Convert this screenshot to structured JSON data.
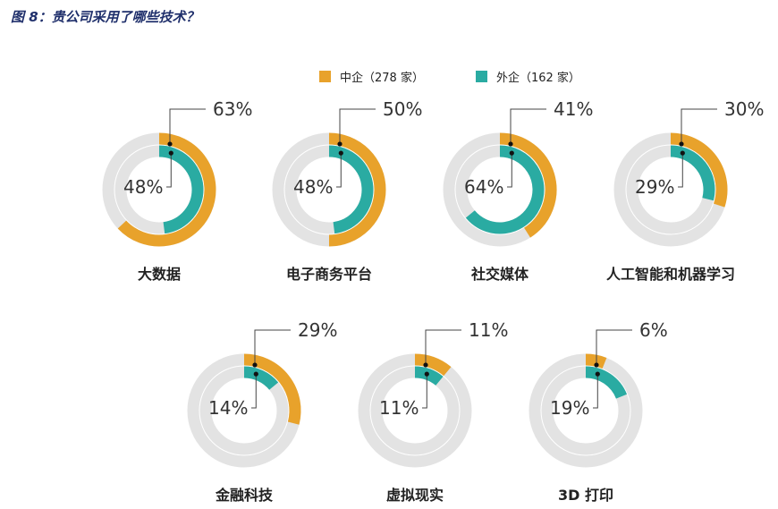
{
  "title": "图 8：贵公司采用了哪些技术？",
  "chart_data": {
    "type": "donut",
    "title": "图 8：贵公司采用了哪些技术？",
    "series": [
      {
        "name": "中企（278 家）",
        "color": "#e8a22b"
      },
      {
        "name": "外企（162 家）",
        "color": "#2aaba2"
      }
    ],
    "categories": [
      "大数据",
      "电子商务平台",
      "社交媒体",
      "人工智能和机器学习",
      "金融科技",
      "虚拟现实",
      "3D 打印"
    ],
    "items": [
      {
        "category": "大数据",
        "chinese": 63,
        "foreign": 48,
        "chinese_label": "63%",
        "foreign_label": "48%"
      },
      {
        "category": "电子商务平台",
        "chinese": 50,
        "foreign": 48,
        "chinese_label": "50%",
        "foreign_label": "48%"
      },
      {
        "category": "社交媒体",
        "chinese": 41,
        "foreign": 64,
        "chinese_label": "41%",
        "foreign_label": "64%"
      },
      {
        "category": "人工智能和机器学习",
        "chinese": 30,
        "foreign": 29,
        "chinese_label": "30%",
        "foreign_label": "29%"
      },
      {
        "category": "金融科技",
        "chinese": 29,
        "foreign": 14,
        "chinese_label": "29%",
        "foreign_label": "14%"
      },
      {
        "category": "虚拟现实",
        "chinese": 11,
        "foreign": 11,
        "chinese_label": "11%",
        "foreign_label": "11%"
      },
      {
        "category": "3D 打印",
        "chinese": 6,
        "foreign": 19,
        "chinese_label": "6%",
        "foreign_label": "19%"
      }
    ],
    "range": [
      0,
      100
    ],
    "legend_position": "top-center",
    "track_color": "#e3e3e3"
  }
}
